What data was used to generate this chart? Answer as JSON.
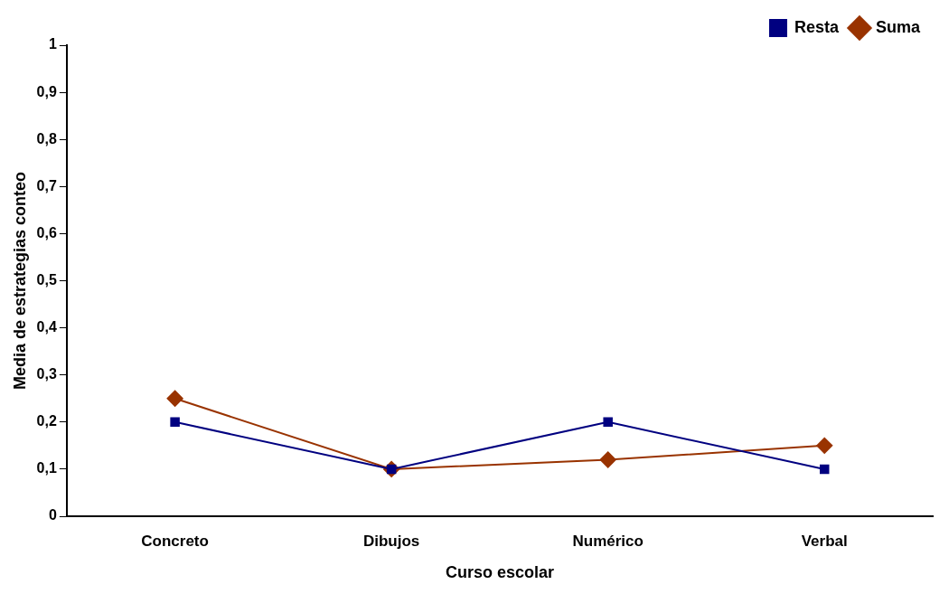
{
  "chart_data": {
    "type": "line",
    "xlabel": "Curso escolar",
    "ylabel": "Media de estrategias conteo",
    "categories": [
      "Concreto",
      "Dibujos",
      "Numérico",
      "Verbal"
    ],
    "series": [
      {
        "name": "Suma",
        "color": "#993300",
        "marker": "diamond",
        "values": [
          0.25,
          0.1,
          0.12,
          0.15
        ]
      },
      {
        "name": "Resta",
        "color": "#000080",
        "marker": "square",
        "values": [
          0.2,
          0.1,
          0.2,
          0.1
        ]
      }
    ],
    "ylim": [
      0,
      1
    ],
    "yticks": [
      0,
      {
        "value": 0.1,
        "label": "0,1"
      },
      {
        "value": 0.2,
        "label": "0,2"
      },
      {
        "value": 0.3,
        "label": "0,3"
      },
      {
        "value": 0.4,
        "label": "0,4"
      },
      {
        "value": 0.5,
        "label": "0,5"
      },
      {
        "value": 0.6,
        "label": "0,6"
      },
      {
        "value": 0.7,
        "label": "0,7"
      },
      {
        "value": 0.8,
        "label": "0,8"
      },
      {
        "value": 0.9,
        "label": "0,9"
      },
      1
    ],
    "grid": false,
    "legend": "top right",
    "line_style": "solid"
  }
}
